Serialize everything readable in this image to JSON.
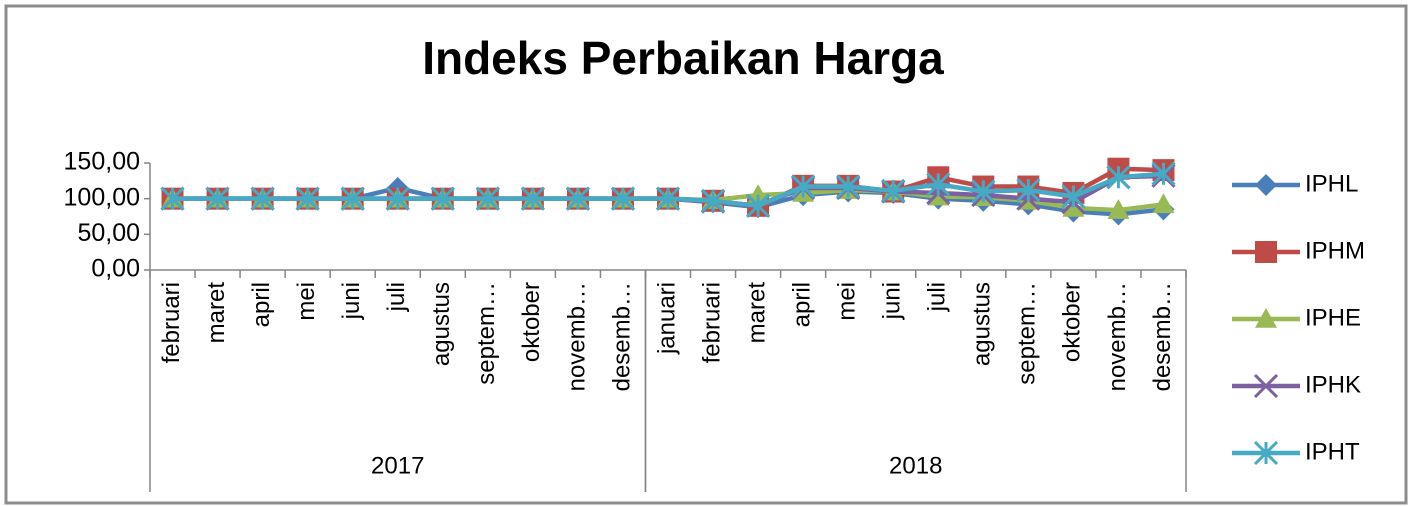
{
  "chart_data": {
    "type": "line",
    "title": "Indeks Perbaikan Harga",
    "groups": [
      {
        "name": "2017",
        "categories": [
          "februari",
          "maret",
          "april",
          "mei",
          "juni",
          "juli",
          "agustus",
          "septem…",
          "oktober",
          "novemb…",
          "desemb…"
        ]
      },
      {
        "name": "2018",
        "categories": [
          "januari",
          "februari",
          "maret",
          "april",
          "mei",
          "juni",
          "juli",
          "agustus",
          "septem…",
          "oktober",
          "novemb…",
          "desemb…"
        ]
      }
    ],
    "ylim": [
      0,
      150
    ],
    "yticks": [
      {
        "value": 0,
        "label": "0,00"
      },
      {
        "value": 50,
        "label": "50,00"
      },
      {
        "value": 100,
        "label": "100,00"
      },
      {
        "value": 150,
        "label": "150,00"
      }
    ],
    "grid": false,
    "legend": "right",
    "series": [
      {
        "name": "IPHL",
        "color": "#4a7ebb",
        "marker": "diamond",
        "values": [
          100,
          100,
          100,
          100,
          100,
          115,
          100,
          100,
          100,
          100,
          100,
          100,
          95,
          88,
          105,
          110,
          108,
          100,
          97,
          92,
          82,
          78,
          85
        ]
      },
      {
        "name": "IPHM",
        "color": "#be4b48",
        "marker": "square",
        "values": [
          100,
          100,
          100,
          100,
          100,
          100,
          100,
          100,
          100,
          100,
          100,
          100,
          97,
          90,
          118,
          118,
          110,
          130,
          117,
          117,
          108,
          142,
          140
        ]
      },
      {
        "name": "IPHE",
        "color": "#98b954",
        "marker": "triangle",
        "values": [
          100,
          100,
          100,
          100,
          100,
          100,
          100,
          100,
          100,
          100,
          100,
          100,
          98,
          105,
          108,
          112,
          110,
          103,
          102,
          97,
          87,
          84,
          92
        ]
      },
      {
        "name": "IPHK",
        "color": "#7d60a0",
        "marker": "x",
        "values": [
          100,
          100,
          100,
          100,
          100,
          100,
          100,
          100,
          100,
          100,
          100,
          100,
          96,
          90,
          115,
          115,
          110,
          108,
          105,
          100,
          95,
          130,
          132
        ]
      },
      {
        "name": "IPHT",
        "color": "#46aac5",
        "marker": "star",
        "values": [
          100,
          100,
          100,
          100,
          100,
          100,
          100,
          100,
          100,
          100,
          100,
          100,
          97,
          90,
          117,
          117,
          111,
          120,
          110,
          112,
          103,
          130,
          135
        ]
      }
    ]
  }
}
